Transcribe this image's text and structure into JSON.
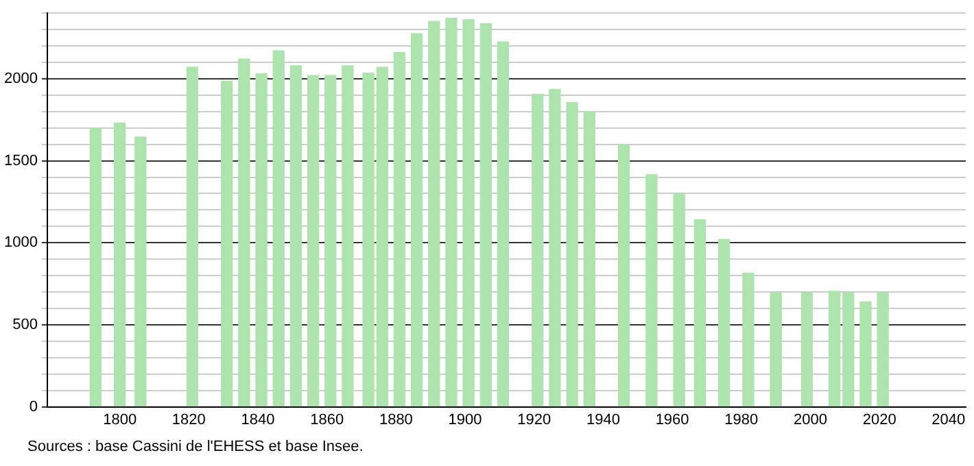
{
  "chart_data": {
    "type": "bar",
    "annotations": [
      "Sources : base Cassini de l'EHESS et base Insee."
    ],
    "x": [
      1793,
      1800,
      1806,
      1821,
      1831,
      1836,
      1841,
      1846,
      1851,
      1856,
      1861,
      1866,
      1872,
      1876,
      1881,
      1886,
      1891,
      1896,
      1901,
      1906,
      1911,
      1921,
      1926,
      1931,
      1936,
      1946,
      1954,
      1962,
      1968,
      1975,
      1982,
      1990,
      1999,
      2006,
      2007,
      2011,
      2016,
      2021
    ],
    "values": [
      1700,
      1730,
      1645,
      2070,
      1985,
      2120,
      2030,
      2170,
      2080,
      2020,
      2020,
      2080,
      2035,
      2070,
      2160,
      2275,
      2350,
      2370,
      2360,
      2335,
      2225,
      1905,
      1935,
      1855,
      1800,
      1600,
      1415,
      1300,
      1140,
      1020,
      815,
      695,
      695,
      null,
      705,
      695,
      640,
      695
    ],
    "color": "#ade3ad",
    "xlim": [
      1779,
      2045
    ],
    "xticks": [
      1800,
      1820,
      1840,
      1860,
      1880,
      1900,
      1920,
      1940,
      1960,
      1980,
      2000,
      2020,
      2040
    ],
    "ylim": [
      0,
      2400
    ],
    "yticks": [
      0,
      {
        "value": 100,
        "label": null
      },
      {
        "value": 200,
        "label": null
      },
      {
        "value": 300,
        "label": null
      },
      {
        "value": 400,
        "label": null
      },
      500,
      {
        "value": 600,
        "label": null
      },
      {
        "value": 700,
        "label": null
      },
      {
        "value": 800,
        "label": null
      },
      {
        "value": 900,
        "label": null
      },
      1000,
      {
        "value": 1100,
        "label": null
      },
      {
        "value": 1200,
        "label": null
      },
      {
        "value": 1300,
        "label": null
      },
      {
        "value": 1400,
        "label": null
      },
      1500,
      {
        "value": 1600,
        "label": null
      },
      {
        "value": 1700,
        "label": null
      },
      {
        "value": 1800,
        "label": null
      },
      {
        "value": 1900,
        "label": null
      },
      2000,
      {
        "value": 2100,
        "label": null
      },
      {
        "value": 2200,
        "label": null
      },
      {
        "value": 2300,
        "label": null
      },
      {
        "value": 2400,
        "label": null
      }
    ],
    "grid": "y",
    "legend": false
  }
}
